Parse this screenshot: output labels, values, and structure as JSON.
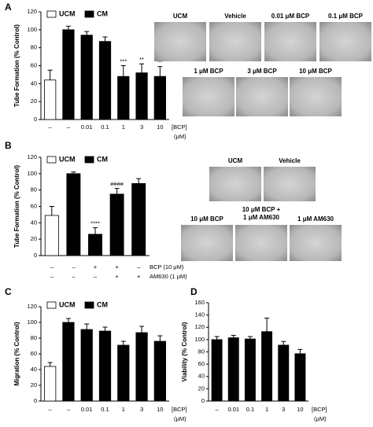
{
  "chart_data": [
    {
      "type": "bar",
      "panel": "A",
      "ylabel": "Tube Formation (% Control)",
      "ylim": [
        0,
        120
      ],
      "yticks": [
        0,
        20,
        40,
        60,
        80,
        100,
        120
      ],
      "legend": [
        {
          "name": "UCM",
          "color": "#ffffff"
        },
        {
          "name": "CM",
          "color": "#000000"
        }
      ],
      "categories": [
        "–",
        "–",
        "0.01",
        "0.1",
        "1",
        "3",
        "10"
      ],
      "xlabel": "[BCP]",
      "xunit": "(μM)",
      "values": [
        44,
        100,
        94,
        87,
        48,
        52,
        48
      ],
      "errors": [
        11,
        4,
        4,
        5,
        12,
        10,
        11
      ],
      "colors": [
        "#ffffff",
        "#000000",
        "#000000",
        "#000000",
        "#000000",
        "#000000",
        "#000000"
      ],
      "annotations": [
        null,
        null,
        null,
        null,
        "***",
        "**",
        "**"
      ],
      "images": [
        "UCM",
        "Vehicle",
        "0.01 μM BCP",
        "0.1 μM BCP",
        "1 μM BCP",
        "3 μM BCP",
        "10 μM BCP"
      ]
    },
    {
      "type": "bar",
      "panel": "B",
      "ylabel": "Tube Formation (% Control)",
      "ylim": [
        0,
        120
      ],
      "yticks": [
        0,
        20,
        40,
        60,
        80,
        100,
        120
      ],
      "legend": [
        {
          "name": "UCM",
          "color": "#ffffff"
        },
        {
          "name": "CM",
          "color": "#000000"
        }
      ],
      "values": [
        49,
        100,
        26,
        75,
        88
      ],
      "errors": [
        11,
        2,
        8,
        7,
        6
      ],
      "colors": [
        "#ffffff",
        "#000000",
        "#000000",
        "#000000",
        "#000000"
      ],
      "annotations": [
        null,
        null,
        "****",
        "####",
        null
      ],
      "rows": [
        {
          "label": "BCP (10 μM)",
          "marks": [
            "–",
            "–",
            "+",
            "+",
            "–"
          ]
        },
        {
          "label": "AM630 (1 μM)",
          "marks": [
            "–",
            "–",
            "–",
            "+",
            "+"
          ]
        }
      ],
      "images": [
        "UCM",
        "Vehicle",
        "10 μM BCP",
        [
          "10 μM BCP +",
          "1 μM AM630"
        ],
        "1 μM AM630"
      ]
    },
    {
      "type": "bar",
      "panel": "C",
      "ylabel": "Migration (% Control)",
      "ylim": [
        0,
        120
      ],
      "yticks": [
        0,
        20,
        40,
        60,
        80,
        100,
        120
      ],
      "legend": [
        {
          "name": "UCM",
          "color": "#ffffff"
        },
        {
          "name": "CM",
          "color": "#000000"
        }
      ],
      "categories": [
        "–",
        "–",
        "0.01",
        "0.1",
        "1",
        "3",
        "10"
      ],
      "xlabel": "[BCP]",
      "xunit": "(μM)",
      "values": [
        44,
        100,
        91,
        89,
        71,
        87,
        76
      ],
      "errors": [
        5,
        5,
        7,
        5,
        5,
        8,
        7
      ],
      "colors": [
        "#ffffff",
        "#000000",
        "#000000",
        "#000000",
        "#000000",
        "#000000",
        "#000000"
      ]
    },
    {
      "type": "bar",
      "panel": "D",
      "ylabel": "Viability (% Control)",
      "ylim": [
        0,
        160
      ],
      "yticks": [
        0,
        20,
        40,
        60,
        80,
        100,
        120,
        140,
        160
      ],
      "categories": [
        "–",
        "0.01",
        "0.1",
        "1",
        "3",
        "10"
      ],
      "xlabel": "[BCP]",
      "xunit": "(μM)",
      "values": [
        100,
        103,
        101,
        113,
        91,
        77
      ],
      "errors": [
        5,
        4,
        4,
        22,
        6,
        7
      ],
      "colors": [
        "#000000",
        "#000000",
        "#000000",
        "#000000",
        "#000000",
        "#000000"
      ]
    }
  ]
}
